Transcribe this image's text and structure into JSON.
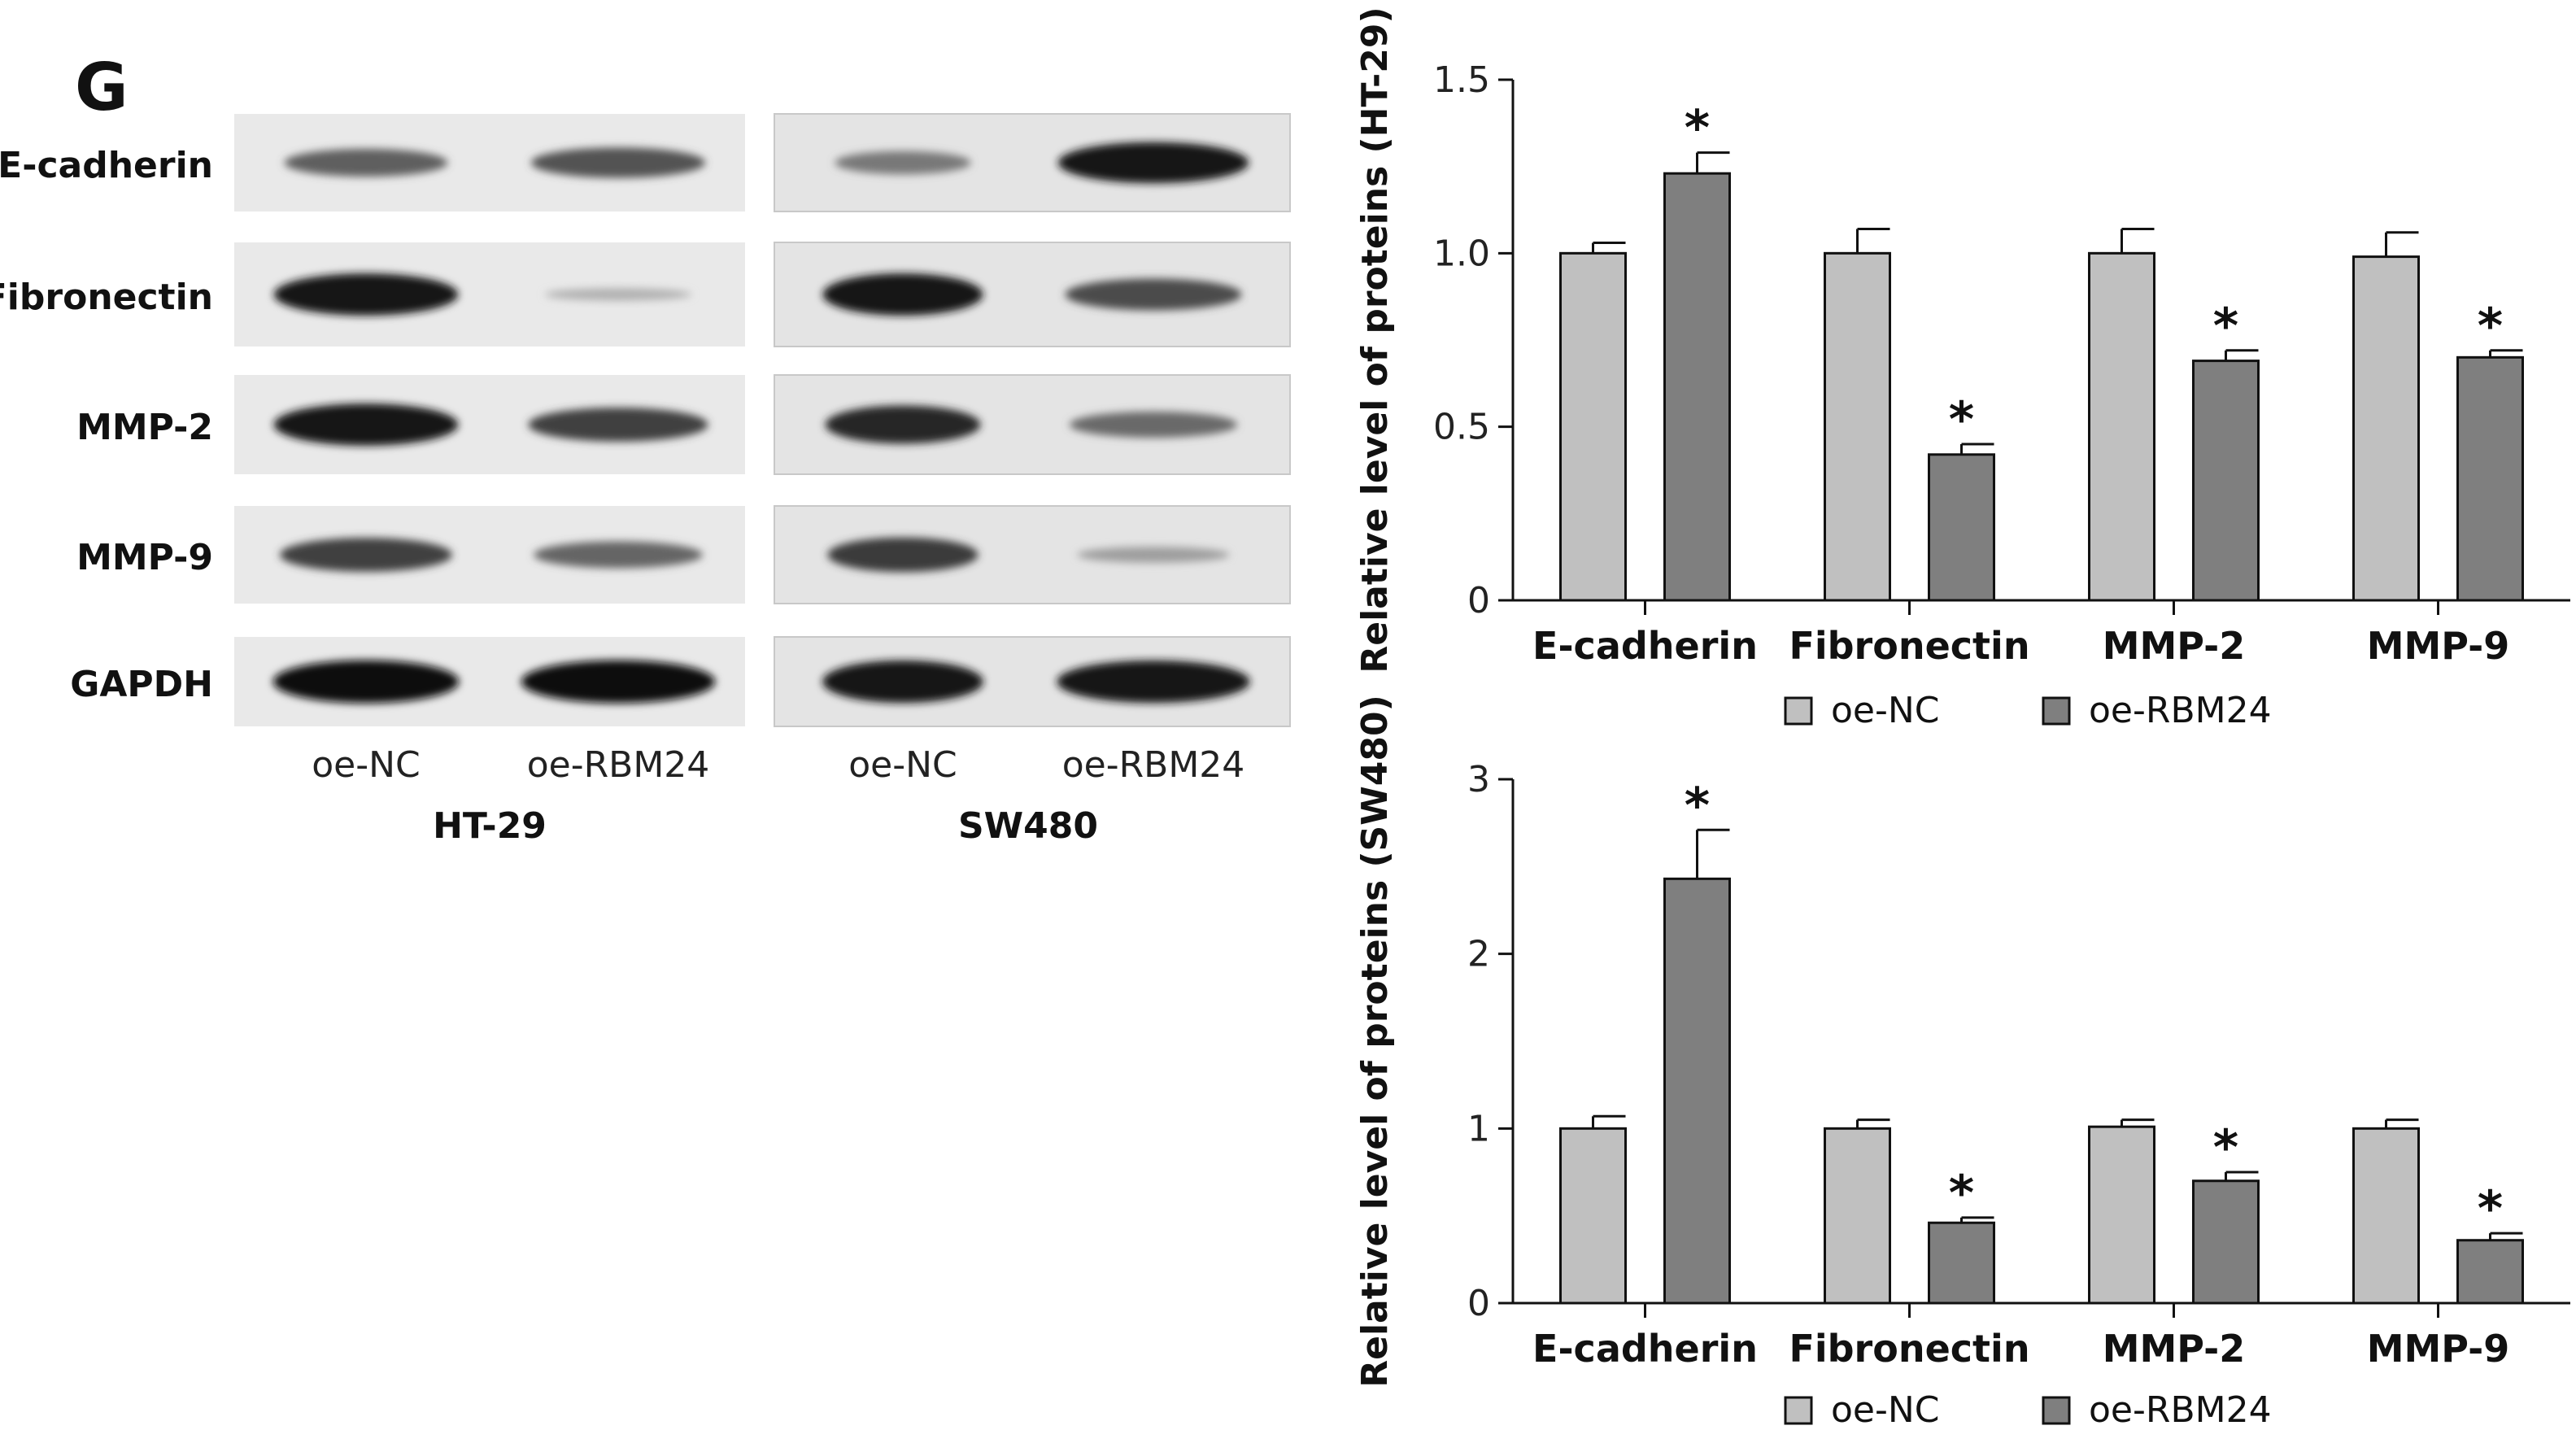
{
  "panel_label": "G",
  "blot": {
    "proteins": [
      "E-cadherin",
      "Fibronectin",
      "MMP-2",
      "MMP-9",
      "GAPDH"
    ],
    "lanes": [
      "oe-NC",
      "oe-RBM24",
      "oe-NC",
      "oe-RBM24"
    ],
    "cell_lines": [
      "HT-29",
      "SW480"
    ],
    "band_intensity": {
      "HT-29": [
        [
          0.55,
          0.62
        ],
        [
          0.95,
          0.12
        ],
        [
          0.95,
          0.72
        ],
        [
          0.72,
          0.52
        ],
        [
          0.98,
          0.98
        ]
      ],
      "SW480": [
        [
          0.42,
          0.92
        ],
        [
          0.95,
          0.66
        ],
        [
          0.84,
          0.5
        ],
        [
          0.74,
          0.22
        ],
        [
          0.96,
          0.96
        ]
      ]
    }
  },
  "chart_data": [
    {
      "type": "bar",
      "categories": [
        "E-cadherin",
        "Fibronectin",
        "MMP-2",
        "MMP-9"
      ],
      "series": [
        {
          "name": "oe-NC",
          "values": [
            1.0,
            1.0,
            1.0,
            0.99
          ],
          "errors": [
            0.03,
            0.07,
            0.07,
            0.07
          ],
          "color": "#c0c0c0"
        },
        {
          "name": "oe-RBM24",
          "values": [
            1.23,
            0.42,
            0.69,
            0.7
          ],
          "errors": [
            0.06,
            0.03,
            0.03,
            0.02
          ],
          "color": "#7f7f7f"
        }
      ],
      "significant": [
        false,
        false,
        false,
        false,
        true,
        true,
        true,
        true
      ],
      "sig_marker": "*",
      "ylabel": "Relative level of proteins (HT-29)",
      "ylim": [
        0,
        1.5
      ],
      "yticks": [
        0,
        0.5,
        1.0,
        1.5
      ],
      "ytick_labels": [
        "0",
        "0.5",
        "1.0",
        "1.5"
      ],
      "legend_position": "bottom"
    },
    {
      "type": "bar",
      "categories": [
        "E-cadherin",
        "Fibronectin",
        "MMP-2",
        "MMP-9"
      ],
      "series": [
        {
          "name": "oe-NC",
          "values": [
            1.0,
            1.0,
            1.01,
            1.0
          ],
          "errors": [
            0.07,
            0.05,
            0.04,
            0.05
          ],
          "color": "#c0c0c0"
        },
        {
          "name": "oe-RBM24",
          "values": [
            2.43,
            0.46,
            0.7,
            0.36
          ],
          "errors": [
            0.28,
            0.03,
            0.05,
            0.04
          ],
          "color": "#7f7f7f"
        }
      ],
      "significant": [
        false,
        false,
        false,
        false,
        true,
        true,
        true,
        true
      ],
      "sig_marker": "*",
      "ylabel": "Relative level of proteins (SW480)",
      "ylim": [
        0,
        3
      ],
      "yticks": [
        0,
        1,
        2,
        3
      ],
      "ytick_labels": [
        "0",
        "1",
        "2",
        "3"
      ],
      "legend_position": "bottom"
    }
  ]
}
